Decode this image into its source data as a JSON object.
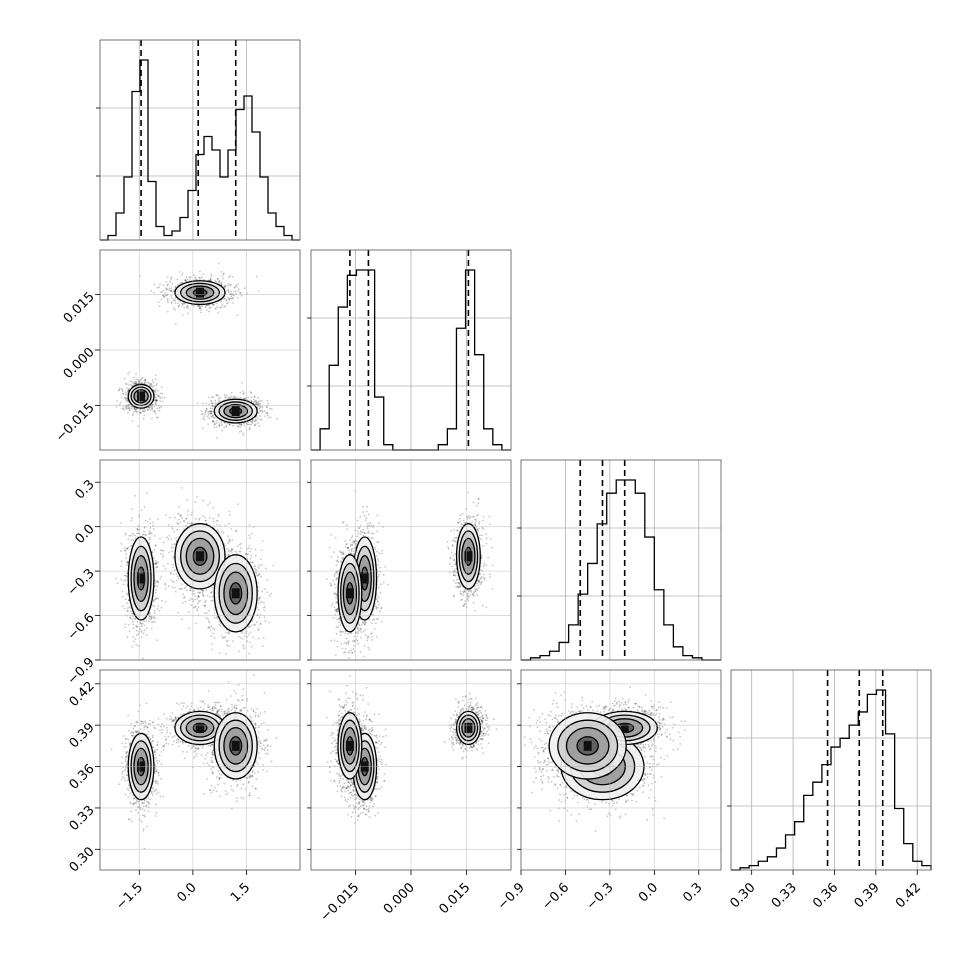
{
  "chart_data": {
    "type": "corner",
    "grid": true,
    "parameters": [
      {
        "ticks": [
          -1.5,
          0.0,
          1.5
        ],
        "tick_labels": [
          "−1.5",
          "0.0",
          "1.5"
        ],
        "range": [
          -2.6,
          3.0
        ]
      },
      {
        "ticks": [
          -0.015,
          0.0,
          0.015
        ],
        "tick_labels": [
          "−0.015",
          "0.000",
          "0.015"
        ],
        "range": [
          -0.027,
          0.027
        ]
      },
      {
        "ticks": [
          -0.9,
          -0.6,
          -0.3,
          0.0,
          0.3
        ],
        "tick_labels": [
          "−0.9",
          "−0.6",
          "−0.3",
          "0.0",
          "0.3"
        ],
        "range": [
          -0.9,
          0.45
        ]
      },
      {
        "ticks": [
          0.3,
          0.33,
          0.36,
          0.39,
          0.42
        ],
        "tick_labels": [
          "0.30",
          "0.33",
          "0.36",
          "0.39",
          "0.42"
        ],
        "range": [
          0.285,
          0.43
        ]
      }
    ],
    "quantiles": [
      [
        -1.45,
        0.15,
        1.2
      ],
      [
        -0.0165,
        -0.0115,
        0.0155
      ],
      [
        -0.5,
        -0.35,
        -0.2
      ],
      [
        0.355,
        0.378,
        0.395
      ]
    ],
    "histograms": [
      {
        "edges_range": [
          -2.6,
          3.0
        ],
        "counts": [
          0,
          1,
          6,
          14,
          33,
          40,
          13,
          3,
          1,
          2,
          5,
          11,
          19,
          23,
          20,
          14,
          20,
          29,
          32,
          24,
          14,
          6,
          3,
          1,
          0
        ]
      },
      {
        "edges_range": [
          -0.027,
          0.027
        ],
        "counts": [
          0,
          4,
          16,
          27,
          33,
          34,
          34,
          10,
          1,
          0,
          0,
          0,
          0,
          0,
          1,
          4,
          23,
          34,
          18,
          4,
          1,
          0
        ]
      },
      {
        "edges_range": [
          -0.9,
          0.45
        ],
        "counts": [
          0,
          0.5,
          1,
          2,
          4,
          8,
          15,
          22,
          31,
          38,
          41,
          41,
          38,
          28,
          16,
          8,
          3,
          1,
          0.5,
          0,
          0
        ]
      },
      {
        "edges_range": [
          0.285,
          0.43
        ],
        "counts": [
          0,
          0.5,
          1,
          2,
          3,
          5,
          8,
          11,
          17,
          20,
          24,
          28,
          30,
          33,
          36,
          40,
          41,
          31,
          14,
          6,
          2,
          1
        ]
      }
    ],
    "clusters": [
      {
        "mean": [
          -1.45,
          -0.0125,
          -0.35,
          0.36
        ],
        "sd": [
          0.18,
          0.0016,
          0.14,
          0.012
        ],
        "weight": 0.33
      },
      {
        "mean": [
          0.2,
          0.0155,
          -0.2,
          0.388
        ],
        "sd": [
          0.35,
          0.0016,
          0.11,
          0.006
        ],
        "weight": 0.34
      },
      {
        "mean": [
          1.2,
          -0.0165,
          -0.45,
          0.375
        ],
        "sd": [
          0.3,
          0.0016,
          0.13,
          0.012
        ],
        "weight": 0.33
      }
    ]
  }
}
